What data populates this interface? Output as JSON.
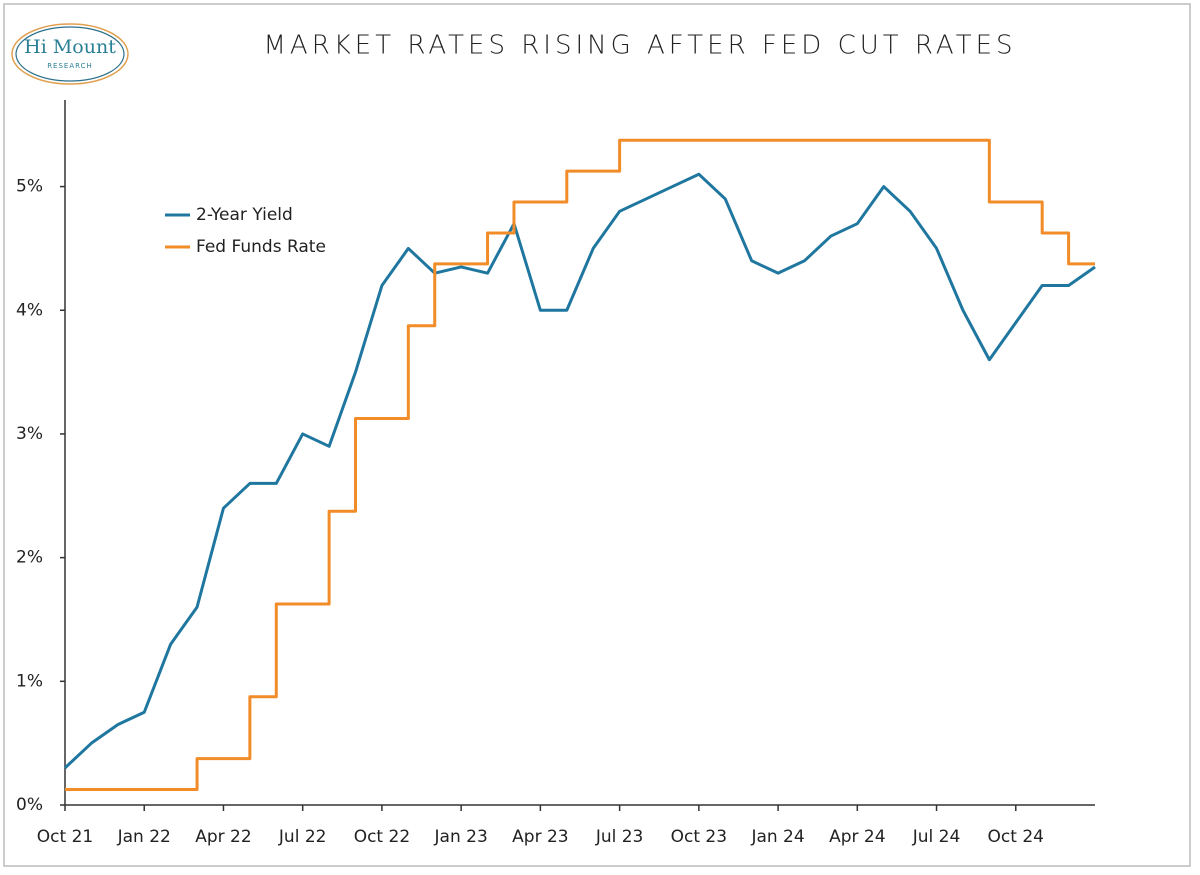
{
  "logo": {
    "name": "Hi Mount",
    "subtitle": "RESEARCH"
  },
  "chart_data": {
    "type": "line",
    "title": "MARKET RATES RISING AFTER FED CUT RATES",
    "x": [
      "2021-10",
      "2021-11",
      "2021-12",
      "2022-01",
      "2022-02",
      "2022-03",
      "2022-04",
      "2022-05",
      "2022-06",
      "2022-07",
      "2022-08",
      "2022-09",
      "2022-10",
      "2022-11",
      "2022-12",
      "2023-01",
      "2023-02",
      "2023-03",
      "2023-04",
      "2023-05",
      "2023-06",
      "2023-07",
      "2023-08",
      "2023-09",
      "2023-10",
      "2023-11",
      "2023-12",
      "2024-01",
      "2024-02",
      "2024-03",
      "2024-04",
      "2024-05",
      "2024-06",
      "2024-07",
      "2024-08",
      "2024-09",
      "2024-10",
      "2024-11",
      "2024-12",
      "2025-01"
    ],
    "series": [
      {
        "name": "2-Year Yield",
        "color": "#1f77a0",
        "values": [
          0.3,
          0.5,
          0.65,
          0.75,
          1.3,
          1.6,
          2.4,
          2.6,
          2.6,
          3.0,
          2.9,
          3.5,
          4.2,
          4.5,
          4.3,
          4.35,
          4.3,
          4.7,
          4.0,
          4.0,
          4.5,
          4.8,
          4.9,
          5.0,
          5.1,
          4.9,
          4.4,
          4.3,
          4.4,
          4.6,
          4.7,
          5.0,
          4.8,
          4.5,
          4.0,
          3.6,
          3.9,
          4.2,
          4.2,
          4.35
        ]
      },
      {
        "name": "Fed Funds Rate",
        "color": "#f28c28",
        "step": true,
        "values": [
          0.125,
          0.125,
          0.125,
          0.125,
          0.125,
          0.375,
          0.375,
          0.875,
          1.625,
          1.625,
          2.375,
          3.125,
          3.125,
          3.875,
          4.375,
          4.375,
          4.625,
          4.875,
          4.875,
          5.125,
          5.125,
          5.375,
          5.375,
          5.375,
          5.375,
          5.375,
          5.375,
          5.375,
          5.375,
          5.375,
          5.375,
          5.375,
          5.375,
          5.375,
          5.375,
          4.875,
          4.875,
          4.625,
          4.375,
          4.375
        ]
      }
    ],
    "xlim": [
      "2021-10",
      "2025-01"
    ],
    "xticks": [
      {
        "value": "2021-10",
        "label": "Oct 21"
      },
      {
        "value": "2022-01",
        "label": "Jan 22"
      },
      {
        "value": "2022-04",
        "label": "Apr 22"
      },
      {
        "value": "2022-07",
        "label": "Jul 22"
      },
      {
        "value": "2022-10",
        "label": "Oct 22"
      },
      {
        "value": "2023-01",
        "label": "Jan 23"
      },
      {
        "value": "2023-04",
        "label": "Apr 23"
      },
      {
        "value": "2023-07",
        "label": "Jul 23"
      },
      {
        "value": "2023-10",
        "label": "Oct 23"
      },
      {
        "value": "2024-01",
        "label": "Jan 24"
      },
      {
        "value": "2024-04",
        "label": "Apr 24"
      },
      {
        "value": "2024-07",
        "label": "Jul 24"
      },
      {
        "value": "2024-10",
        "label": "Oct 24"
      }
    ],
    "ylim": [
      0,
      5.7
    ],
    "yticks": [
      {
        "value": 0,
        "label": "0%"
      },
      {
        "value": 1,
        "label": "1%"
      },
      {
        "value": 2,
        "label": "2%"
      },
      {
        "value": 3,
        "label": "3%"
      },
      {
        "value": 4,
        "label": "4%"
      },
      {
        "value": 5,
        "label": "5%"
      }
    ],
    "grid": false,
    "legend": "upper left"
  }
}
